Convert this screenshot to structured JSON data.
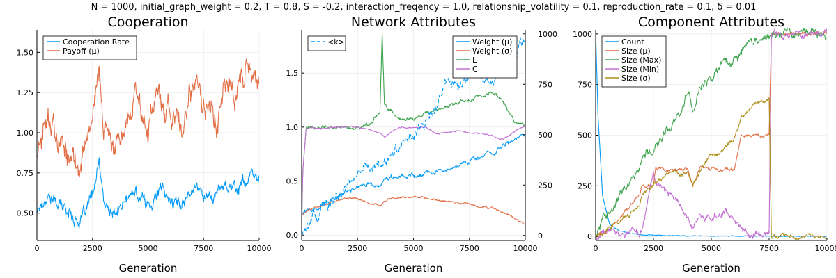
{
  "suptitle": "N = 1000, initial_graph_weight = 0.2, T = 0.8, S = -0.2, interaction_freqency = 1.0, relationship_volatility = 0.1, reproduction_rate = 0.1, δ = 0.01",
  "colors": {
    "blue": "#009af9",
    "orange": "#e26f46",
    "green": "#3ea44e",
    "purple": "#c271d2",
    "olive": "#ac8e18"
  },
  "chart_data": [
    {
      "type": "line",
      "title": "Cooperation",
      "xlabel": "Generation",
      "xlim": [
        0,
        10000
      ],
      "ylim": [
        0.33,
        1.64
      ],
      "xticks": [
        0,
        2500,
        5000,
        7500,
        10000
      ],
      "xtick_labels": [
        "0",
        "2500",
        "5000",
        "7500",
        "10000"
      ],
      "yticks": [
        0.5,
        0.75,
        1.0,
        1.25,
        1.5
      ],
      "ytick_labels": [
        "0.50",
        "0.75",
        "1.00",
        "1.25",
        "1.50"
      ],
      "grid": true,
      "legend_position": "top-left",
      "x": [
        0,
        500,
        1000,
        1500,
        2000,
        2500,
        2800,
        3000,
        3500,
        4000,
        4500,
        5000,
        5500,
        6000,
        6500,
        7000,
        7500,
        8000,
        8500,
        9000,
        9500,
        10000
      ],
      "series": [
        {
          "name": "Cooperation Rate",
          "color": "#009af9",
          "values": [
            0.52,
            0.62,
            0.55,
            0.5,
            0.45,
            0.6,
            0.8,
            0.55,
            0.48,
            0.58,
            0.62,
            0.55,
            0.65,
            0.58,
            0.55,
            0.68,
            0.62,
            0.6,
            0.7,
            0.66,
            0.72,
            0.7
          ]
        },
        {
          "name": "Payoff (μ)",
          "color": "#e26f46",
          "values": [
            0.88,
            1.12,
            0.95,
            0.85,
            0.78,
            1.1,
            1.45,
            1.0,
            0.9,
            1.15,
            1.3,
            0.95,
            1.25,
            1.1,
            0.98,
            1.35,
            1.2,
            1.05,
            1.3,
            1.25,
            1.45,
            1.22
          ]
        }
      ]
    },
    {
      "type": "line",
      "title": "Network Attributes",
      "xlabel": "Generation",
      "xlim": [
        0,
        10000
      ],
      "ylim": [
        -0.05,
        1.9
      ],
      "ylim_right": [
        -25,
        1020
      ],
      "xticks": [
        0,
        2500,
        5000,
        7500,
        10000
      ],
      "xtick_labels": [
        "0",
        "2500",
        "5000",
        "7500",
        "10000"
      ],
      "yticks": [
        0.0,
        0.5,
        1.0,
        1.5
      ],
      "ytick_labels": [
        "0.0",
        "0.5",
        "1.0",
        "1.5"
      ],
      "yticks_right": [
        0,
        250,
        500,
        750,
        1000
      ],
      "ytick_labels_right": [
        "0",
        "250",
        "500",
        "750",
        "1000"
      ],
      "grid": true,
      "legend_position": "top-right",
      "legend_right_position": "top-left",
      "x": [
        0,
        50,
        200,
        500,
        1000,
        1500,
        2000,
        2500,
        3000,
        3500,
        3600,
        3700,
        4000,
        4500,
        5000,
        5500,
        6000,
        6500,
        7000,
        7500,
        8000,
        8500,
        9000,
        9500,
        10000
      ],
      "series": [
        {
          "name": "Weight (μ)",
          "color": "#009af9",
          "axis": "left",
          "values": [
            0.2,
            0.21,
            0.22,
            0.25,
            0.3,
            0.35,
            0.4,
            0.45,
            0.48,
            0.44,
            0.46,
            0.5,
            0.52,
            0.54,
            0.55,
            0.56,
            0.6,
            0.62,
            0.66,
            0.7,
            0.72,
            0.76,
            0.82,
            0.88,
            0.92
          ]
        },
        {
          "name": "Weight (σ)",
          "color": "#e26f46",
          "axis": "left",
          "values": [
            0.18,
            0.2,
            0.22,
            0.24,
            0.28,
            0.32,
            0.34,
            0.33,
            0.3,
            0.28,
            0.29,
            0.32,
            0.34,
            0.36,
            0.35,
            0.34,
            0.33,
            0.31,
            0.3,
            0.29,
            0.26,
            0.25,
            0.22,
            0.16,
            0.1
          ]
        },
        {
          "name": "L",
          "color": "#3ea44e",
          "axis": "left",
          "values": [
            0.0,
            0.6,
            1.0,
            1.0,
            1.0,
            1.0,
            1.0,
            1.0,
            1.02,
            1.14,
            1.85,
            1.2,
            1.15,
            1.06,
            1.07,
            1.12,
            1.15,
            1.18,
            1.22,
            1.25,
            1.28,
            1.32,
            1.25,
            1.05,
            1.0
          ]
        },
        {
          "name": "C",
          "color": "#c271d2",
          "axis": "left",
          "values": [
            0.0,
            0.6,
            0.99,
            0.99,
            0.99,
            1.0,
            1.0,
            1.0,
            0.98,
            0.95,
            0.93,
            0.9,
            0.96,
            1.0,
            0.99,
            1.0,
            0.94,
            0.95,
            0.97,
            0.95,
            0.94,
            0.92,
            0.88,
            0.96,
            1.0
          ]
        },
        {
          "name": "<k>",
          "color": "#009af9",
          "axis": "right",
          "dash": true,
          "values": [
            10,
            30,
            60,
            100,
            130,
            190,
            230,
            300,
            350,
            350,
            330,
            360,
            410,
            470,
            500,
            560,
            640,
            780,
            750,
            800,
            780,
            760,
            850,
            900,
            1000
          ]
        }
      ]
    },
    {
      "type": "line",
      "title": "Component Attributes",
      "xlabel": "Generation",
      "xlim": [
        0,
        10000
      ],
      "ylim": [
        -20,
        1020
      ],
      "xticks": [
        0,
        2500,
        5000,
        7500,
        10000
      ],
      "xtick_labels": [
        "0",
        "2500",
        "5000",
        "7500",
        "10000"
      ],
      "yticks": [
        0,
        250,
        500,
        750,
        1000
      ],
      "ytick_labels": [
        "0",
        "250",
        "500",
        "750",
        "1000"
      ],
      "grid": true,
      "legend_position": "top-left",
      "x": [
        0,
        30,
        100,
        300,
        600,
        1000,
        1500,
        1900,
        2000,
        2500,
        2600,
        3000,
        3500,
        4000,
        4200,
        4500,
        5000,
        5500,
        6000,
        6300,
        6500,
        7000,
        7500,
        7600,
        10000
      ],
      "series": [
        {
          "name": "Count",
          "color": "#009af9",
          "values": [
            1000,
            900,
            600,
            200,
            60,
            30,
            15,
            10,
            8,
            6,
            5,
            4,
            4,
            3,
            3,
            2,
            2,
            2,
            2,
            1,
            1,
            1,
            1,
            1,
            1
          ]
        },
        {
          "name": "Size (μ)",
          "color": "#e26f46",
          "values": [
            1,
            2,
            5,
            20,
            40,
            80,
            150,
            200,
            250,
            250,
            330,
            330,
            330,
            330,
            250,
            330,
            330,
            330,
            330,
            500,
            500,
            500,
            500,
            1000,
            1000
          ]
        },
        {
          "name": "Size (Max)",
          "color": "#3ea44e",
          "values": [
            1,
            5,
            20,
            60,
            120,
            200,
            280,
            330,
            380,
            420,
            450,
            500,
            600,
            700,
            600,
            740,
            780,
            860,
            880,
            900,
            930,
            960,
            990,
            1000,
            1000
          ]
        },
        {
          "name": "Size (Min)",
          "color": "#c271d2",
          "values": [
            1,
            1,
            10,
            25,
            20,
            15,
            10,
            5,
            30,
            300,
            260,
            230,
            180,
            110,
            60,
            120,
            80,
            130,
            90,
            40,
            30,
            20,
            20,
            1000,
            1000
          ]
        },
        {
          "name": "Size (σ)",
          "color": "#ac8e18",
          "values": [
            0,
            2,
            10,
            25,
            45,
            70,
            110,
            150,
            200,
            250,
            270,
            300,
            320,
            300,
            250,
            320,
            410,
            420,
            480,
            580,
            600,
            670,
            690,
            0,
            0
          ]
        }
      ]
    }
  ]
}
